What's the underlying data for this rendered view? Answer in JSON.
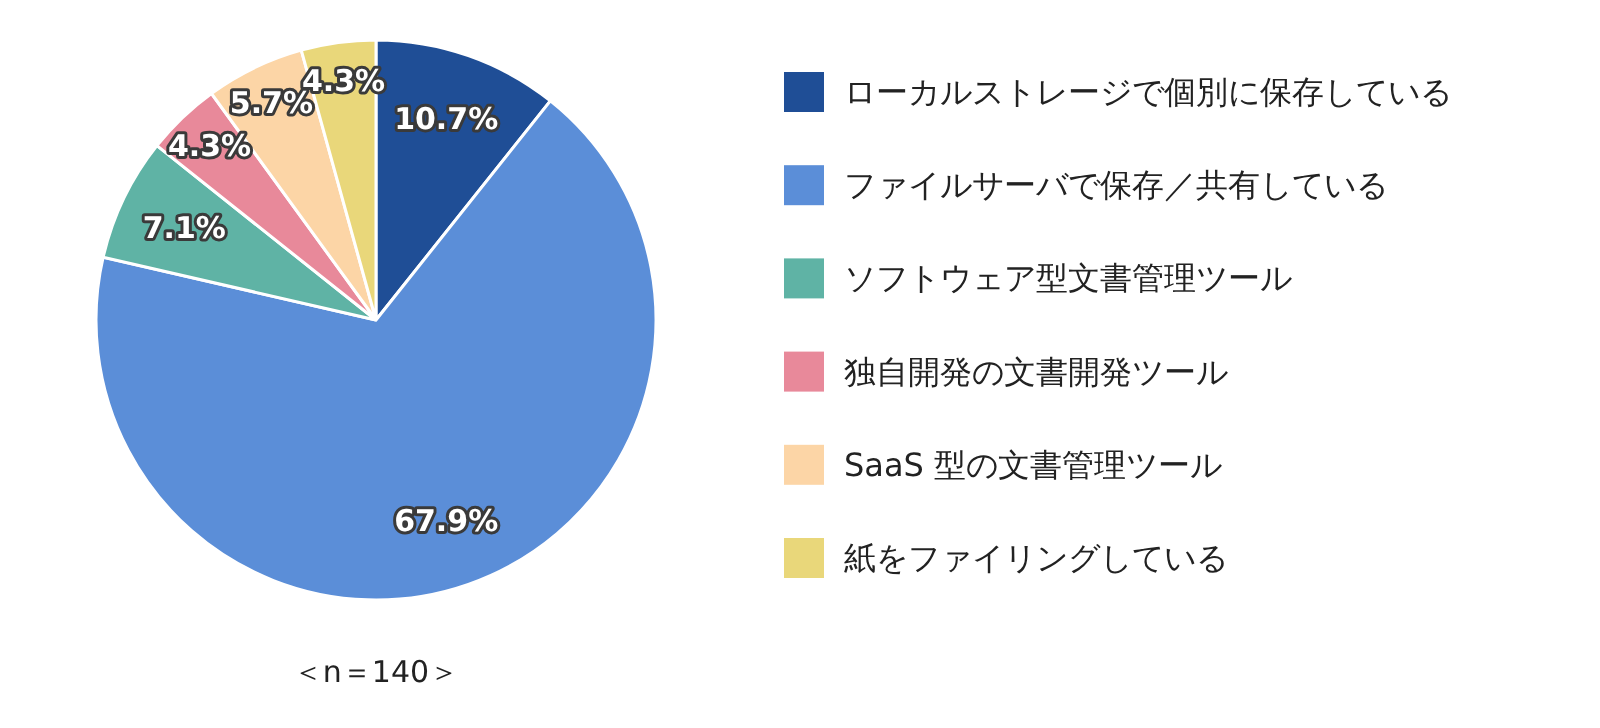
{
  "chart_data": {
    "type": "pie",
    "categories": [
      "ローカルストレージで個別に保存している",
      "ファイルサーバで保存／共有している",
      "ソフトウェア型文書管理ツール",
      "独自開発の文書開発ツール",
      "SaaS 型の文書管理ツール",
      "紙をファイリングしている"
    ],
    "values": [
      10.7,
      67.9,
      7.1,
      4.3,
      5.7,
      4.3
    ],
    "colors": [
      "#1f4e96",
      "#5b8ed8",
      "#5fb3a5",
      "#e8899a",
      "#fcd5a6",
      "#e9d77a"
    ],
    "value_labels": [
      "10.7%",
      "67.9%",
      "7.1%",
      "4.3%",
      "5.7%",
      "4.3%"
    ],
    "legend": "right",
    "annotations": [
      "＜n＝140＞"
    ]
  }
}
